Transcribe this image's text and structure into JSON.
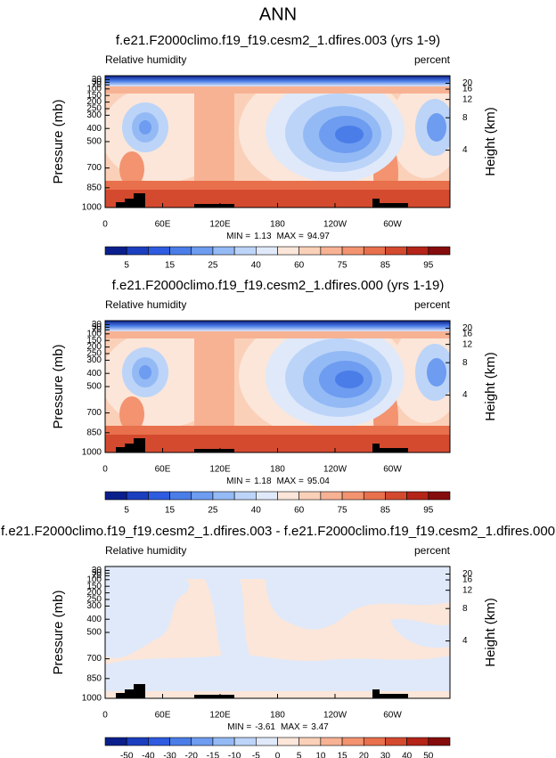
{
  "title": "ANN",
  "chart_data": [
    {
      "type": "contour",
      "title": "f.e21.F2000climo.f19_f19.cesm2_1.dfires.003 (yrs 1-9)",
      "left_label": "Relative humidity",
      "right_label": "percent",
      "y_label": "Pressure (mb)",
      "y2_label": "Height (km)",
      "xlim": [
        0,
        360
      ],
      "xticks": [
        0,
        {
          "value": 60,
          "label": "60E"
        },
        {
          "value": 120,
          "label": "120E"
        },
        180,
        {
          "value": 240,
          "label": "120W"
        },
        {
          "value": 300,
          "label": "60W"
        }
      ],
      "ylim": [
        1000,
        0
      ],
      "yticks": [
        1000,
        850,
        700,
        500,
        400,
        300,
        250,
        200,
        150,
        100,
        70,
        50,
        30
      ],
      "y2ticks": [
        4,
        8,
        12,
        16,
        20
      ],
      "min_label": "MIN =",
      "min": 1.13,
      "max_label": "MAX =",
      "max": 94.97,
      "colorbar": {
        "colors": [
          "#0a1f8c",
          "#1c3fbf",
          "#2e5be0",
          "#4a7de8",
          "#6d9cf0",
          "#94baf5",
          "#bcd4f8",
          "#dfe9fa",
          "#fbe6d9",
          "#fbd0b8",
          "#f7b293",
          "#f39370",
          "#e8704c",
          "#d44a2f",
          "#b42418",
          "#850c0c"
        ],
        "labels": [
          5,
          15,
          25,
          40,
          60,
          75,
          85,
          95
        ]
      }
    },
    {
      "type": "contour",
      "title": "f.e21.F2000climo.f19_f19.cesm2_1.dfires.000 (yrs 1-19)",
      "left_label": "Relative humidity",
      "right_label": "percent",
      "y_label": "Pressure (mb)",
      "y2_label": "Height (km)",
      "xlim": [
        0,
        360
      ],
      "xticks": [
        0,
        {
          "value": 60,
          "label": "60E"
        },
        {
          "value": 120,
          "label": "120E"
        },
        180,
        {
          "value": 240,
          "label": "120W"
        },
        {
          "value": 300,
          "label": "60W"
        }
      ],
      "ylim": [
        1000,
        0
      ],
      "yticks": [
        1000,
        850,
        700,
        500,
        400,
        300,
        250,
        200,
        150,
        100,
        70,
        50,
        30
      ],
      "y2ticks": [
        4,
        8,
        12,
        16,
        20
      ],
      "min_label": "MIN =",
      "min": 1.18,
      "max_label": "MAX =",
      "max": 95.04,
      "colorbar": {
        "colors": [
          "#0a1f8c",
          "#1c3fbf",
          "#2e5be0",
          "#4a7de8",
          "#6d9cf0",
          "#94baf5",
          "#bcd4f8",
          "#dfe9fa",
          "#fbe6d9",
          "#fbd0b8",
          "#f7b293",
          "#f39370",
          "#e8704c",
          "#d44a2f",
          "#b42418",
          "#850c0c"
        ],
        "labels": [
          5,
          15,
          25,
          40,
          60,
          75,
          85,
          95
        ]
      }
    },
    {
      "type": "contour",
      "title": "f.e21.F2000climo.f19_f19.cesm2_1.dfires.003 - f.e21.F2000climo.f19_f19.cesm2_1.dfires.000",
      "left_label": "Relative humidity",
      "right_label": "percent",
      "y_label": "Pressure (mb)",
      "y2_label": "Height (km)",
      "xlim": [
        0,
        360
      ],
      "xticks": [
        0,
        {
          "value": 60,
          "label": "60E"
        },
        {
          "value": 120,
          "label": "120E"
        },
        180,
        {
          "value": 240,
          "label": "120W"
        },
        {
          "value": 300,
          "label": "60W"
        }
      ],
      "ylim": [
        1000,
        0
      ],
      "yticks": [
        1000,
        850,
        700,
        500,
        400,
        300,
        250,
        200,
        150,
        100,
        70,
        50,
        30
      ],
      "y2ticks": [
        4,
        8,
        12,
        16,
        20
      ],
      "min_label": "MIN =",
      "min": -3.61,
      "max_label": "MAX =",
      "max": 3.47,
      "colorbar": {
        "colors": [
          "#0a1f8c",
          "#1c3fbf",
          "#2e5be0",
          "#4a7de8",
          "#6d9cf0",
          "#94baf5",
          "#bcd4f8",
          "#dfe9fa",
          "#fbe6d9",
          "#fbd0b8",
          "#f7b293",
          "#f39370",
          "#e8704c",
          "#d44a2f",
          "#b42418",
          "#850c0c"
        ],
        "labels": [
          -50,
          -40,
          -30,
          -20,
          -15,
          -10,
          -5,
          0,
          5,
          10,
          15,
          20,
          30,
          40,
          50
        ]
      }
    }
  ]
}
